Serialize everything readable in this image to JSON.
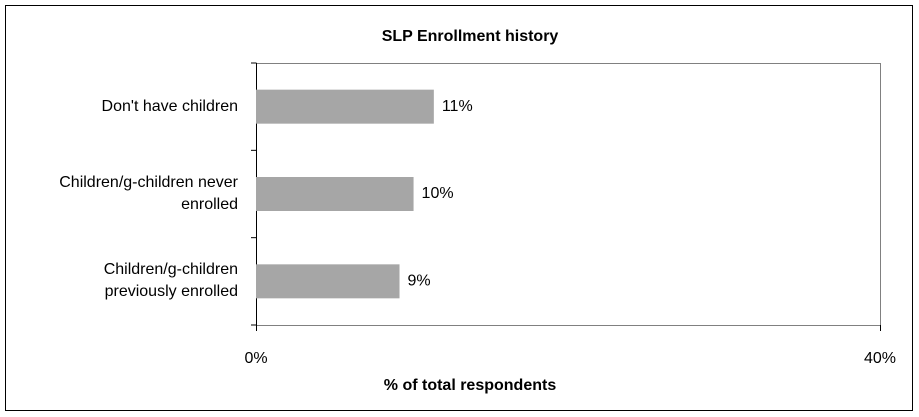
{
  "chart_data": {
    "type": "bar",
    "orientation": "horizontal",
    "title": "SLP Enrollment history",
    "x_label": "% of total respondents",
    "categories": [
      "Don't have children",
      "Children/g-children never enrolled",
      "Children/g-children previously enrolled"
    ],
    "values": [
      11.4,
      10.1,
      9.2
    ],
    "value_labels": [
      "11%",
      "10%",
      "9%"
    ],
    "color": "#a6a6a6",
    "xlim": [
      0,
      40
    ],
    "xticks": [
      {
        "value": 0,
        "label": "0%"
      },
      {
        "value": 40,
        "label": "40%"
      }
    ],
    "grid": false
  }
}
